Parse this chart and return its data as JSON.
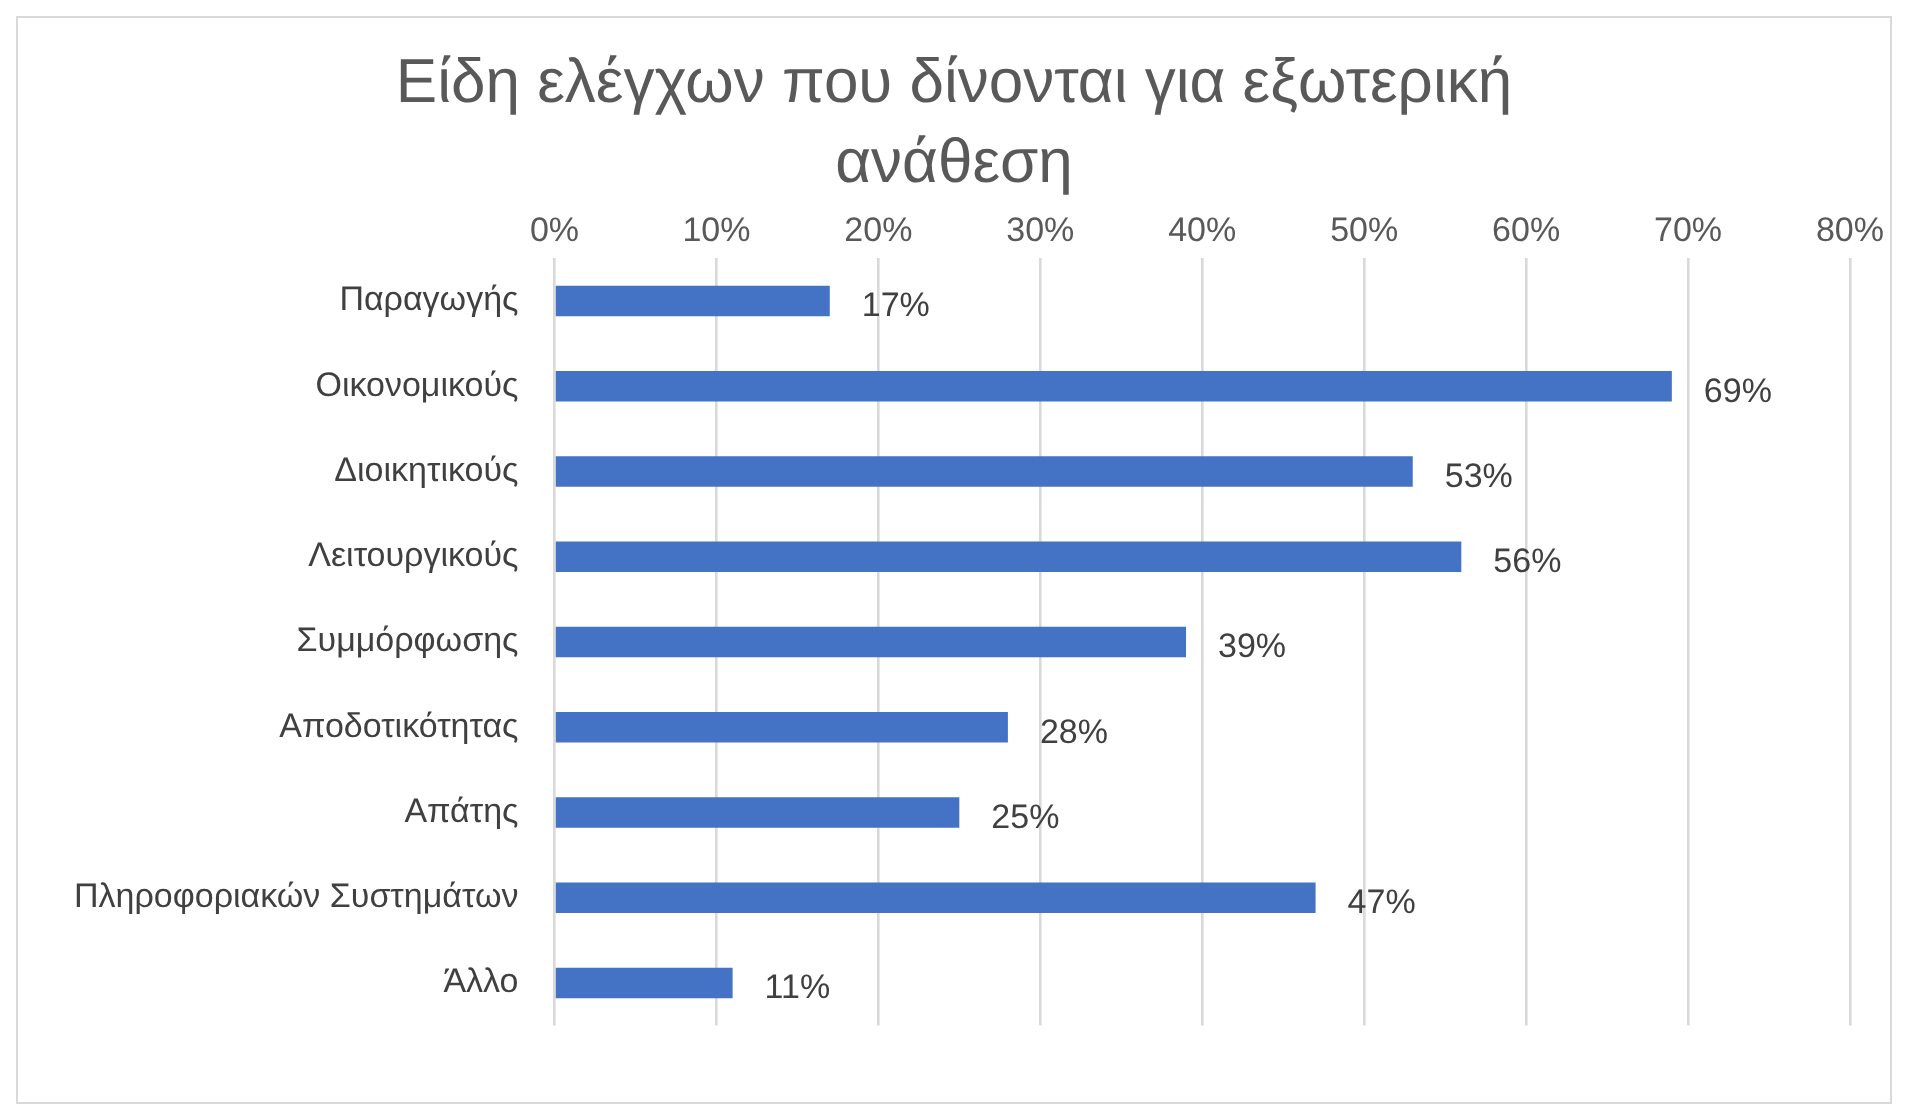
{
  "chart_data": {
    "type": "bar",
    "orientation": "horizontal",
    "title": "Είδη ελέγχων που δίνονται για εξωτερική ανάθεση",
    "categories": [
      "Παραγωγής",
      "Οικονομικούς",
      "Διοικητικούς",
      "Λειτουργικούς",
      "Συμμόρφωσης",
      "Αποδοτικότητας",
      "Απάτης",
      "Πληροφοριακών Συστημάτων",
      "Άλλο"
    ],
    "values": [
      17,
      69,
      53,
      56,
      39,
      28,
      25,
      47,
      11
    ],
    "value_labels": [
      "17%",
      "69%",
      "53%",
      "56%",
      "39%",
      "28%",
      "25%",
      "47%",
      "11%"
    ],
    "color": "#4472c4",
    "xlim": [
      0,
      80
    ],
    "xticks": [
      {
        "value": 0,
        "label": "0%"
      },
      {
        "value": 10,
        "label": "10%"
      },
      {
        "value": 20,
        "label": "20%"
      },
      {
        "value": 30,
        "label": "30%"
      },
      {
        "value": 40,
        "label": "40%"
      },
      {
        "value": 50,
        "label": "50%"
      },
      {
        "value": 60,
        "label": "60%"
      },
      {
        "value": 70,
        "label": "70%"
      },
      {
        "value": 80,
        "label": "80%"
      }
    ],
    "grid": "x",
    "legend": false
  }
}
